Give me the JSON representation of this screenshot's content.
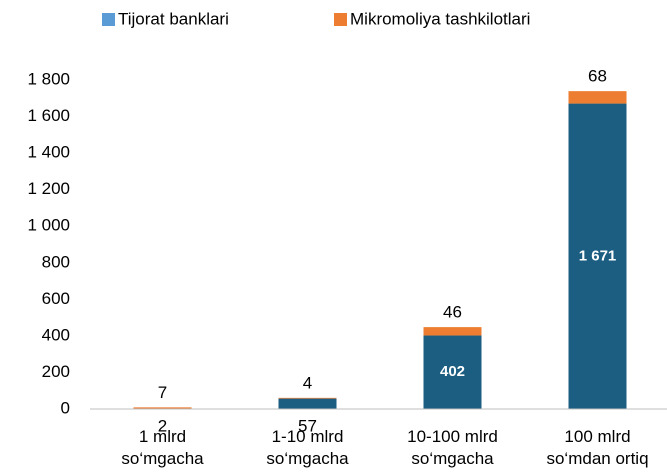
{
  "chart_data": {
    "type": "stacked_bar",
    "categories": [
      [
        "1 mlrd",
        "so‘mgacha"
      ],
      [
        "1-10 mlrd",
        "so‘mgacha"
      ],
      [
        "10-100 mlrd",
        "so‘mgacha"
      ],
      [
        "100 mlrd",
        "so‘mdan ortiq"
      ]
    ],
    "series": [
      {
        "name": "Tijorat banklari",
        "color": "#1b5e82",
        "legend_color": "#5b9bd5",
        "values": [
          2,
          57,
          402,
          1671
        ],
        "value_labels": [
          "2",
          "57",
          "402",
          "1 671"
        ]
      },
      {
        "name": "Mikromoliya tashkilotlari",
        "color": "#ed7d31",
        "values": [
          7,
          4,
          46,
          68
        ]
      }
    ],
    "ylim": [
      0,
      1800
    ],
    "yticks": [
      0,
      200,
      400,
      600,
      800,
      {
        "value": 1000,
        "label": "1 000"
      },
      {
        "value": 1200,
        "label": "1 200"
      },
      {
        "value": 1400,
        "label": "1 400"
      },
      {
        "value": 1600,
        "label": "1 600"
      },
      {
        "value": 1800,
        "label": "1 800"
      }
    ],
    "grid": false
  }
}
